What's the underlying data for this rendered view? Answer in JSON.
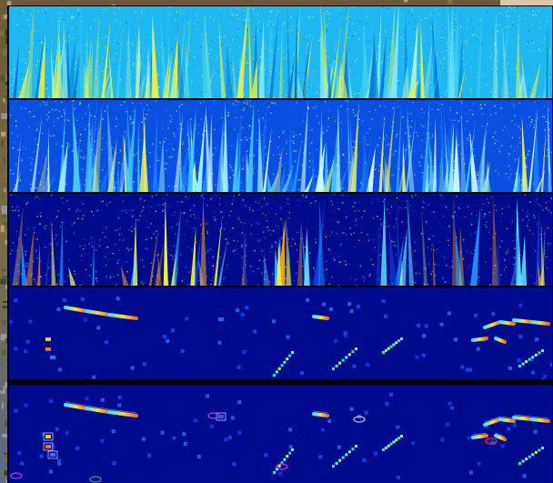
{
  "figure": {
    "background": {
      "icon": "forest-photo"
    },
    "panels": [
      {
        "name": "panel-1",
        "colormap": "jet-high-intensity",
        "base_color": "#1fb8f0"
      },
      {
        "name": "panel-2",
        "colormap": "jet-mid-intensity",
        "base_color": "#0a4fe0"
      },
      {
        "name": "panel-3",
        "colormap": "jet-sparse",
        "base_color": "#000a8c"
      },
      {
        "name": "panel-4",
        "colormap": "jet-detections",
        "base_color": "#000a8c"
      },
      {
        "name": "panel-5",
        "colormap": "jet-detections-outlined",
        "base_color": "#000a8c"
      }
    ]
  }
}
